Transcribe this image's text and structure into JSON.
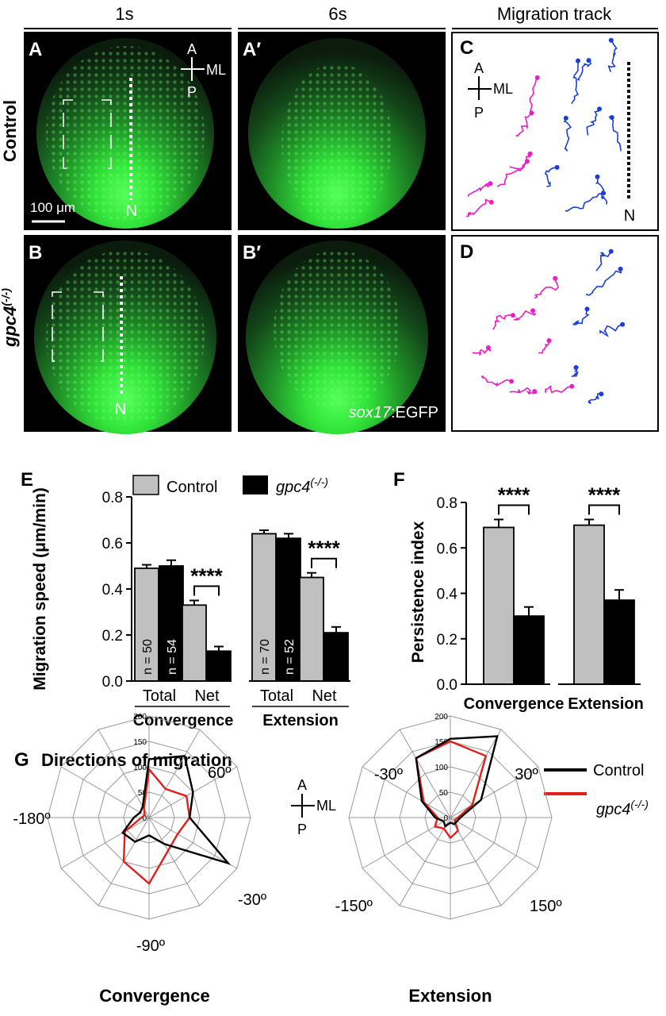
{
  "columns": {
    "c1": "1s",
    "c2": "6s",
    "c3": "Migration track"
  },
  "rows": {
    "r1": "Control",
    "r2": "gpc4",
    "r2_sup": "(-/-)"
  },
  "panels": {
    "A": "A",
    "A2": "A′",
    "B": "B",
    "B2": "B′",
    "C": "C",
    "D": "D",
    "E": "E",
    "F": "F",
    "G": "G"
  },
  "axis_marker": {
    "a": "A",
    "ml": "ML",
    "p": "P"
  },
  "notochord": "N",
  "scale_bar": "100 μm",
  "reporter": {
    "italic": "sox17",
    "plain": ":EGFP"
  },
  "colors": {
    "control_track": "#e91ec8",
    "mutant_track": "#1a3fd4",
    "bar_control": "#c0c0c0",
    "bar_mutant": "#000000",
    "polar_control": "#000000",
    "polar_mutant": "#e0201a",
    "embryo": "#2dc83a"
  },
  "chart_data": [
    {
      "type": "bar",
      "panel": "E",
      "ylabel": "Migration speed (μm/min)",
      "ylim": [
        0,
        0.8
      ],
      "yticks": [
        "0.0",
        "0.2",
        "0.4",
        "0.6",
        "0.8"
      ],
      "groups": [
        {
          "name": "Convergence",
          "categories": [
            "Total",
            "Net"
          ]
        },
        {
          "name": "Extension",
          "categories": [
            "Total",
            "Net"
          ]
        }
      ],
      "series": [
        {
          "name": "Control",
          "values": [
            0.49,
            0.33,
            0.64,
            0.45
          ],
          "errors": [
            0.015,
            0.02,
            0.015,
            0.02
          ]
        },
        {
          "name": "gpc4",
          "sup": "(-/-)",
          "values": [
            0.5,
            0.13,
            0.62,
            0.21
          ],
          "errors": [
            0.025,
            0.02,
            0.02,
            0.025
          ]
        }
      ],
      "n_labels": [
        "n = 50",
        "n = 54",
        "n = 70",
        "n = 52"
      ],
      "significance": "****"
    },
    {
      "type": "bar",
      "panel": "F",
      "ylabel": "Persistence index",
      "ylim": [
        0,
        0.8
      ],
      "yticks": [
        "0.0",
        "0.2",
        "0.4",
        "0.6",
        "0.8"
      ],
      "categories": [
        "Convergence",
        "Extension"
      ],
      "series": [
        {
          "name": "Control",
          "values": [
            0.69,
            0.7
          ],
          "errors": [
            0.035,
            0.025
          ]
        },
        {
          "name": "gpc4",
          "values": [
            0.3,
            0.37
          ],
          "errors": [
            0.04,
            0.045
          ]
        }
      ],
      "significance": "****"
    },
    {
      "type": "radar",
      "panel": "G",
      "title": "Directions of migration",
      "legend": [
        "Control",
        "gpc4"
      ],
      "legend_sup": "(-/-)",
      "rmax": 200,
      "rticks": [
        "0",
        "50",
        "100",
        "150",
        "200"
      ],
      "plots": [
        {
          "name": "Convergence",
          "angle_labels": [
            "60º",
            "-30º",
            "-90º",
            "-180º"
          ],
          "control": [
            115,
            140,
            100,
            80,
            180,
            60,
            35,
            55,
            60,
            30,
            20,
            25
          ],
          "mutant": [
            95,
            65,
            85,
            80,
            65,
            75,
            130,
            100,
            55,
            15,
            10,
            20
          ]
        },
        {
          "name": "Extension",
          "angle_labels": [
            "-30º",
            "30º",
            "150º",
            "-150º"
          ],
          "control": [
            155,
            185,
            70,
            20,
            15,
            15,
            10,
            20,
            15,
            30,
            65,
            135
          ],
          "mutant": [
            150,
            140,
            50,
            15,
            10,
            30,
            40,
            25,
            35,
            25,
            60,
            135
          ]
        }
      ]
    }
  ]
}
